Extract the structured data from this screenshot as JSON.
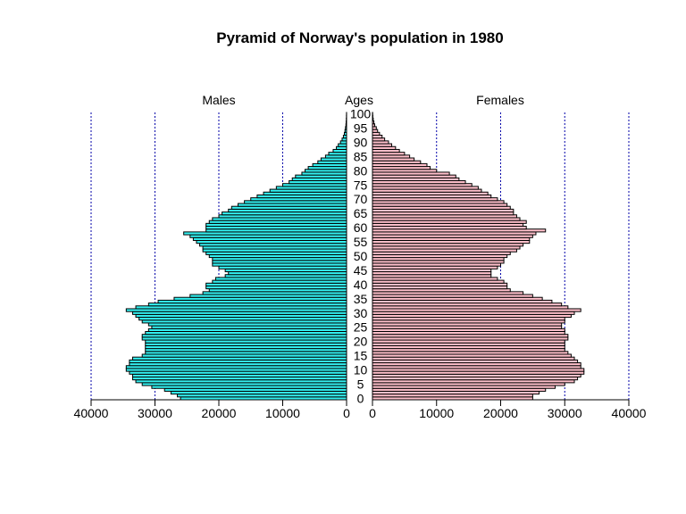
{
  "chart_data": {
    "type": "bar",
    "orientation": "horizontal-pyramid",
    "title": "Pyramid of Norway's population in 1980",
    "left_label": "Males",
    "center_label": "Ages",
    "right_label": "Females",
    "age_axis": {
      "min": 0,
      "max": 100,
      "tick_labels": [
        "0",
        "5",
        "10",
        "15",
        "20",
        "25",
        "30",
        "35",
        "40",
        "45",
        "50",
        "55",
        "60",
        "65",
        "70",
        "75",
        "80",
        "85",
        "90",
        "95",
        "100"
      ]
    },
    "x_axis": {
      "range": [
        0,
        40000
      ],
      "ticks": [
        0,
        10000,
        20000,
        30000,
        40000
      ],
      "tick_labels_males": [
        "40000",
        "30000",
        "20000",
        "10000",
        "0"
      ],
      "tick_labels_females": [
        "0",
        "10000",
        "20000",
        "30000",
        "40000"
      ]
    },
    "grid": true,
    "series": [
      {
        "name": "Males",
        "color": "#33f0f0",
        "values": [
          26000,
          26500,
          27500,
          28500,
          30500,
          32000,
          33000,
          33500,
          33500,
          34000,
          34500,
          34500,
          34000,
          34000,
          33500,
          32000,
          31500,
          31500,
          31500,
          31500,
          31500,
          32000,
          32000,
          31500,
          31000,
          30500,
          31000,
          32000,
          32500,
          33000,
          33500,
          34500,
          33000,
          31000,
          29500,
          27000,
          24500,
          22500,
          21500,
          22000,
          22000,
          21000,
          20500,
          19000,
          18500,
          19000,
          20000,
          21000,
          21000,
          21000,
          21500,
          22000,
          22500,
          22500,
          23000,
          23500,
          24000,
          24500,
          25500,
          22000,
          22000,
          22000,
          21500,
          21000,
          20000,
          19500,
          18500,
          18000,
          17000,
          16000,
          15000,
          14000,
          13000,
          12000,
          11000,
          10000,
          9000,
          8500,
          8000,
          7000,
          6500,
          6000,
          5300,
          4500,
          4000,
          3300,
          2800,
          2100,
          1600,
          1300,
          950,
          700,
          500,
          350,
          250,
          170,
          100,
          70,
          40,
          20,
          10
        ],
        "note": ""
      },
      {
        "name": "Females",
        "color": "#ffc0cb",
        "values": [
          25000,
          25000,
          26000,
          27000,
          28500,
          30000,
          31500,
          32000,
          32500,
          33000,
          33000,
          32500,
          32500,
          32000,
          31500,
          31000,
          30500,
          30000,
          30000,
          30000,
          30000,
          30500,
          30500,
          30000,
          30000,
          29500,
          29500,
          30000,
          30000,
          31000,
          31500,
          32500,
          30500,
          29500,
          28000,
          26500,
          25000,
          23500,
          21500,
          21000,
          21000,
          20500,
          19500,
          18500,
          18500,
          18500,
          19500,
          20000,
          20500,
          20500,
          21000,
          21500,
          22500,
          23000,
          23500,
          24500,
          24500,
          25000,
          25500,
          27000,
          24000,
          23500,
          24000,
          23000,
          22500,
          22000,
          22000,
          21500,
          21000,
          20500,
          19500,
          18500,
          18000,
          17000,
          16500,
          15500,
          14500,
          13500,
          13000,
          12000,
          10000,
          9000,
          8500,
          7500,
          6500,
          5800,
          5000,
          4200,
          3600,
          3000,
          2500,
          1900,
          1500,
          1100,
          800,
          600,
          350,
          220,
          120,
          60,
          30
        ],
        "note": ""
      }
    ]
  }
}
